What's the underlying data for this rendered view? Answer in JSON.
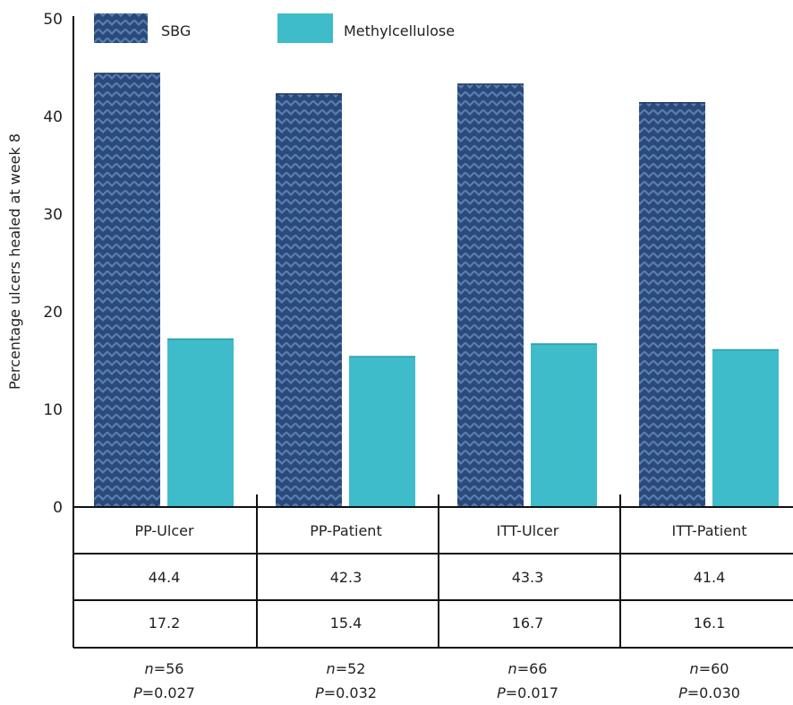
{
  "colors": {
    "sbg": "#2a4a7c",
    "sbg_pattern": "#5a7eb0",
    "methylcellulose": "#3fbcc9",
    "axis": "#111111"
  },
  "chart_data": {
    "type": "bar",
    "title": "",
    "xlabel": "",
    "ylabel": "Percentage ulcers healed at week 8",
    "ylim": [
      0,
      50
    ],
    "yticks": [
      0,
      10,
      20,
      30,
      40,
      50
    ],
    "grid": false,
    "legend_position": "top-left",
    "categories": [
      "PP-Ulcer",
      "PP-Patient",
      "ITT-Ulcer",
      "ITT-Patient"
    ],
    "series": [
      {
        "name": "SBG",
        "values": [
          44.4,
          42.3,
          43.3,
          41.4
        ],
        "pattern": "chevron"
      },
      {
        "name": "Methylcellulose",
        "values": [
          17.2,
          15.4,
          16.7,
          16.1
        ],
        "pattern": "solid"
      }
    ],
    "table_rows": [
      [
        "44.4",
        "42.3",
        "43.3",
        "41.4"
      ],
      [
        "17.2",
        "15.4",
        "16.7",
        "16.1"
      ]
    ],
    "annotations": [
      {
        "n_prefix": "n",
        "n_value": "=56",
        "p_prefix": "P",
        "p_value": "=0.027"
      },
      {
        "n_prefix": "n",
        "n_value": "=52",
        "p_prefix": "P",
        "p_value": "=0.032"
      },
      {
        "n_prefix": "n",
        "n_value": "=66",
        "p_prefix": "P",
        "p_value": "=0.017"
      },
      {
        "n_prefix": "n",
        "n_value": "=60",
        "p_prefix": "P",
        "p_value": "=0.030"
      }
    ]
  }
}
